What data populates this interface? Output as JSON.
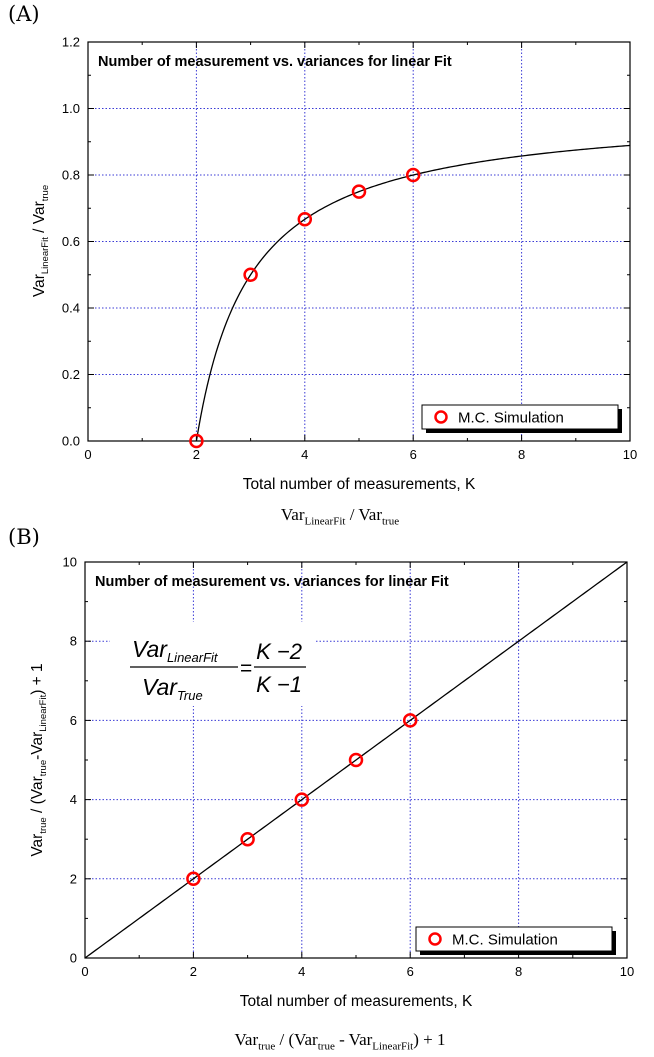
{
  "panels": [
    {
      "panel_label": "(A)",
      "caption": {
        "base1": "Var",
        "sub1": "LinearFit",
        "sep": " / ",
        "base2": "Var",
        "sub2": "true"
      },
      "ylabel": {
        "p1": "Var",
        "s1": "LinearFit",
        "p2": "/ Var",
        "s2": "true"
      }
    },
    {
      "panel_label": "(B)",
      "caption": {
        "a": "Var",
        "as": "true",
        "b": " / (Var",
        "bs": "true",
        "c": " - Var",
        "cs": "LinearFit",
        "d": ") + 1"
      },
      "ylabel": {
        "p1": "Var",
        "s1": "true",
        "p2": " / (Var",
        "s2": "true",
        "p3": "-Var",
        "s3": "LinearFit",
        "p4": ") + 1"
      },
      "formula": {
        "num_base": "Var",
        "num_sub": "LinearFit",
        "den_base": "Var",
        "den_sub": "True",
        "eq": "=",
        "rnum": "K −2",
        "rden": "K −1"
      }
    }
  ],
  "chart_data": [
    {
      "type": "scatter",
      "title": "Number of measurement  vs.  variances for  linear Fit",
      "xlabel": "Total number of measurements, K",
      "ylabel": "Var_LinearFit / Var_true",
      "xlim": [
        0,
        10
      ],
      "ylim": [
        0,
        1.2
      ],
      "xticks": [
        0,
        2,
        4,
        6,
        8,
        10
      ],
      "yticks": [
        0.0,
        0.2,
        0.4,
        0.6,
        0.8,
        1.0,
        1.2
      ],
      "ytick_labels": [
        "0.0",
        "0.2",
        "0.4",
        "0.6",
        "0.8",
        "1.0",
        "1.2"
      ],
      "grid": true,
      "legend_position": "bottom-right",
      "series": [
        {
          "name": "M.C. Simulation",
          "marker": "open-circle",
          "color": "#ff0000",
          "x": [
            2,
            3,
            4,
            5,
            6
          ],
          "y": [
            0.0,
            0.5,
            0.667,
            0.75,
            0.8
          ]
        }
      ],
      "curve": {
        "function": "(K-2)/(K-1)",
        "x_range": [
          2,
          10
        ],
        "color": "#000000"
      }
    },
    {
      "type": "scatter",
      "title": "Number of measurement  vs.  variances for  linear Fit",
      "xlabel": "Total number of measurements, K",
      "ylabel": "Var_true / (Var_true - Var_LinearFit) + 1",
      "xlim": [
        0,
        10
      ],
      "ylim": [
        0,
        10
      ],
      "xticks": [
        0,
        2,
        4,
        6,
        8,
        10
      ],
      "yticks": [
        0,
        2,
        4,
        6,
        8,
        10
      ],
      "ytick_labels": [
        "0",
        "2",
        "4",
        "6",
        "8",
        "10"
      ],
      "grid": true,
      "legend_position": "bottom-right",
      "series": [
        {
          "name": "M.C. Simulation",
          "marker": "open-circle",
          "color": "#ff0000",
          "x": [
            2,
            3,
            4,
            5,
            6
          ],
          "y": [
            2,
            3,
            4,
            5,
            6
          ]
        }
      ],
      "curve": {
        "function": "K",
        "x_range": [
          0,
          10
        ],
        "color": "#000000"
      }
    }
  ],
  "colors": {
    "grid": "#3a3ad6",
    "marker": "#ff0000",
    "line": "#000000"
  }
}
